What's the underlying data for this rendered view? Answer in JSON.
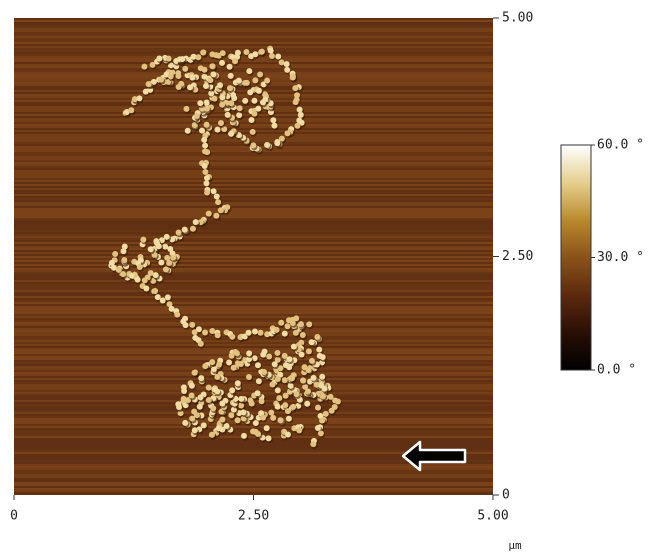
{
  "chart_data": {
    "type": "afm-image",
    "x_unit": "µm",
    "xlim": [
      0,
      5
    ],
    "xticks": [
      0,
      {
        "value": 2.5,
        "label": "2.50"
      },
      {
        "value": 5,
        "label": "5.00"
      }
    ],
    "ylim": [
      0,
      5
    ],
    "yticks": [
      0,
      {
        "value": 2.5,
        "label": "2.50"
      },
      {
        "value": 5,
        "label": "5.00"
      }
    ],
    "colorbar": {
      "lim": [
        0,
        60
      ],
      "ticks": [
        {
          "value": 0,
          "label": "0.0 °"
        },
        {
          "value": 30,
          "label": "30.0 °"
        },
        {
          "value": 60,
          "label": "60.0 °"
        }
      ],
      "colors": [
        "#000000",
        "#2a0f05",
        "#5c2a0e",
        "#8a5218",
        "#b98a2c",
        "#e6cf8e",
        "#ffffff"
      ]
    }
  }
}
